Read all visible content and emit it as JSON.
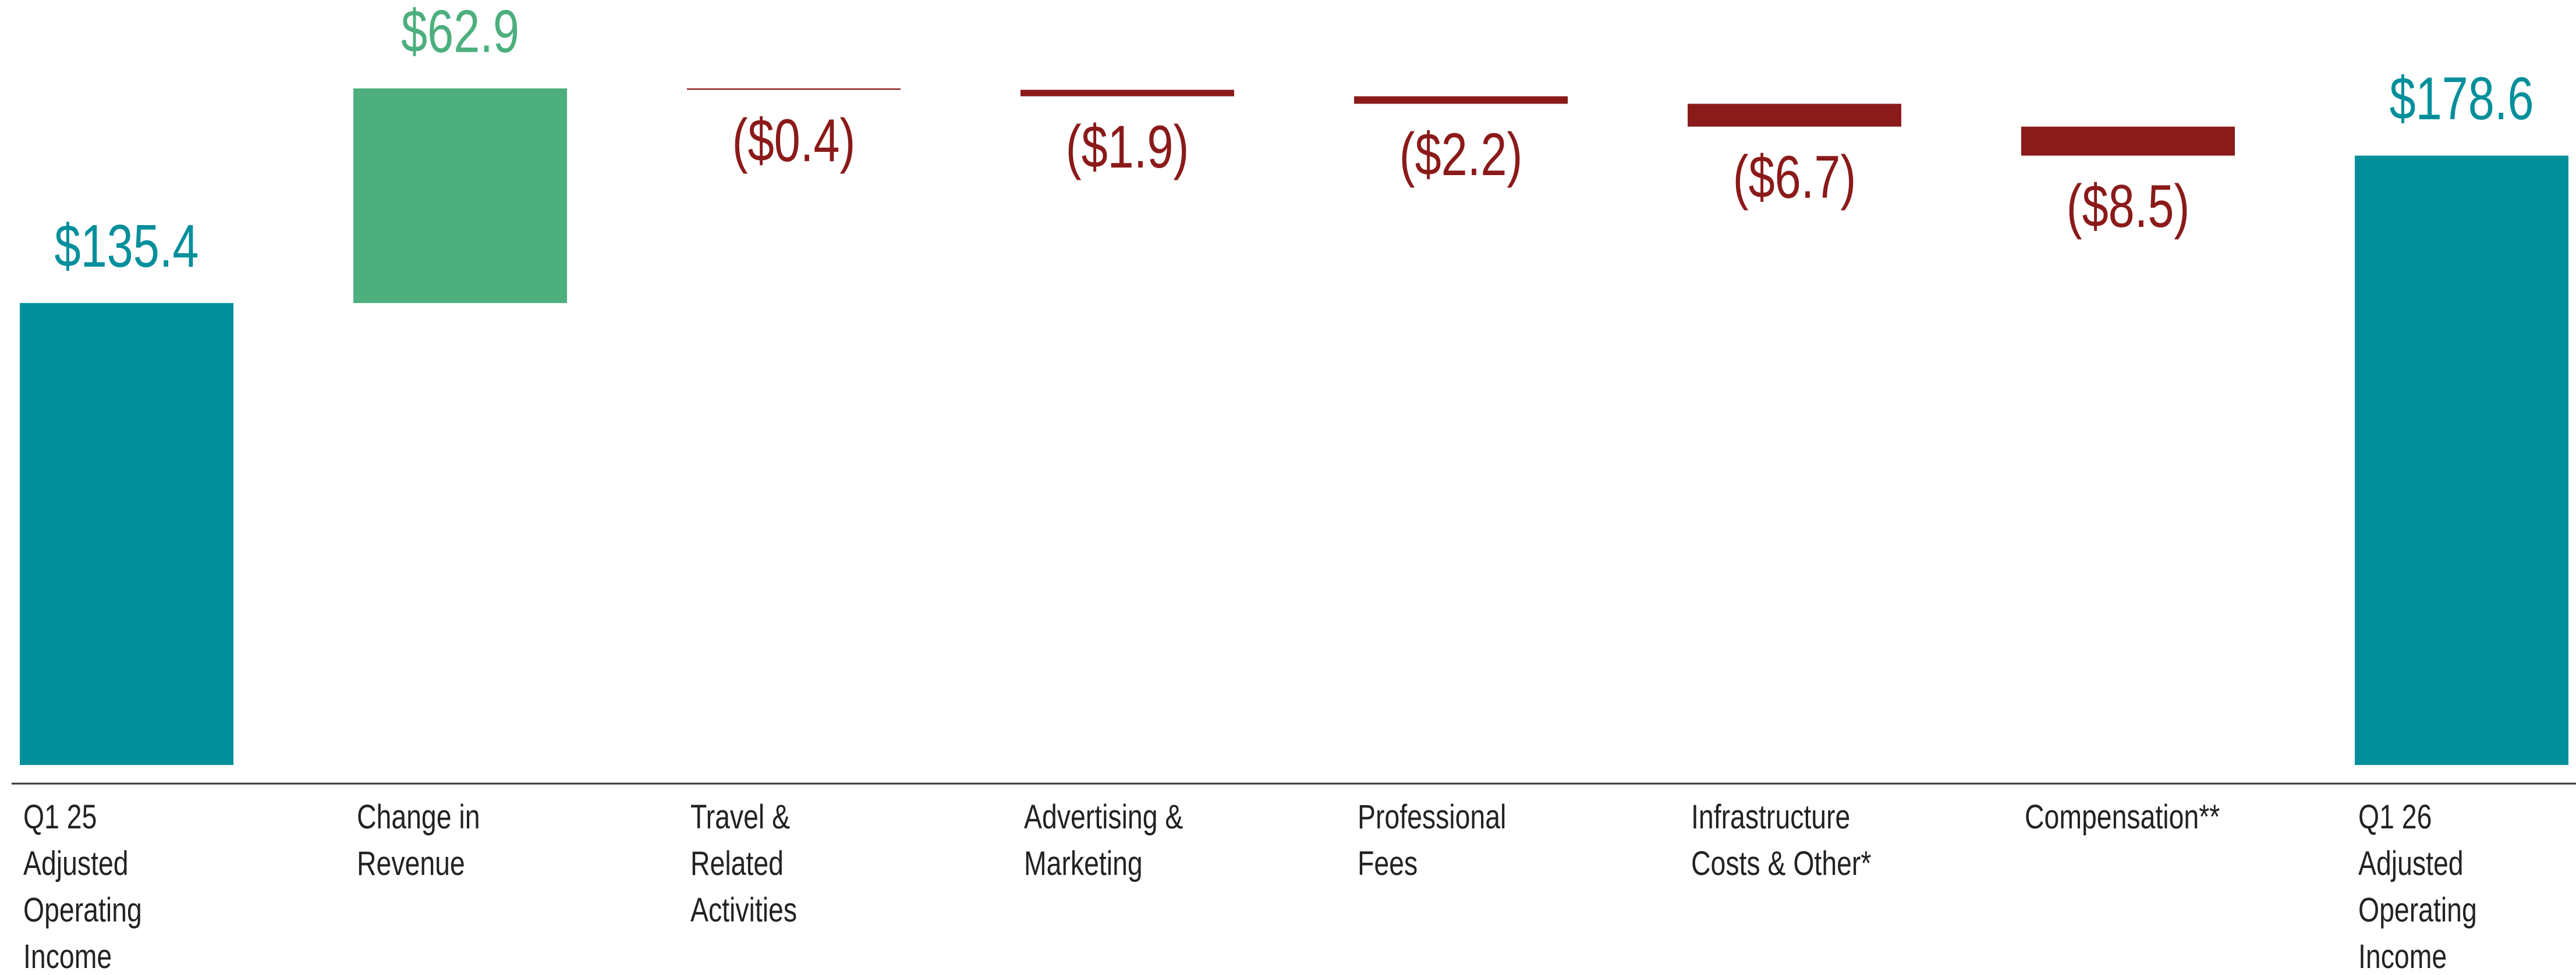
{
  "chart_data": {
    "type": "waterfall",
    "categories": [
      [
        "Q1 25",
        "Adjusted",
        "Operating",
        "Income"
      ],
      [
        "Change in",
        "Revenue"
      ],
      [
        "Travel &",
        "Related",
        "Activities"
      ],
      [
        "Advertising &",
        "Marketing"
      ],
      [
        "Professional",
        "Fees"
      ],
      [
        "Infrastructure",
        "Costs & Other*"
      ],
      [
        "Compensation**"
      ],
      [
        "Q1 26",
        "Adjusted",
        "Operating",
        "Income"
      ]
    ],
    "values": [
      135.4,
      62.9,
      -0.4,
      -1.9,
      -2.2,
      -6.7,
      -8.5,
      178.6
    ],
    "value_labels": [
      "$135.4",
      "$62.9",
      "($0.4)",
      "($1.9)",
      "($2.2)",
      "($6.7)",
      "($8.5)",
      "$178.6"
    ],
    "is_total": [
      true,
      false,
      false,
      false,
      false,
      false,
      false,
      true
    ],
    "colors": {
      "total": "#008f9b",
      "increase": "#4caf7d",
      "decrease": "#8b1a1a"
    }
  }
}
